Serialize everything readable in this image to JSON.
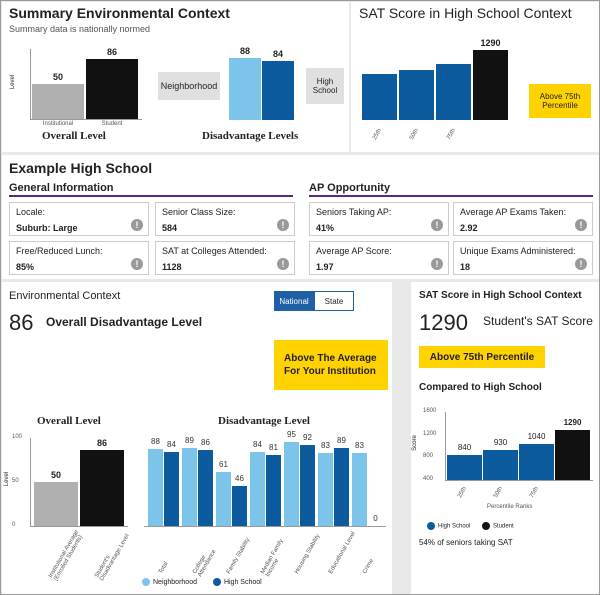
{
  "summary": {
    "title": "Summary Environmental Context",
    "subtitle": "Summary data is nationally normed",
    "overall": {
      "title": "Overall Level",
      "ylabel": "Level",
      "bars": [
        {
          "label": "Institutional",
          "value": 50,
          "color": "#b0b0b0"
        },
        {
          "label": "Student",
          "value": 86,
          "color": "#111111"
        }
      ]
    },
    "disadvantage": {
      "title": "Disadvantage Levels",
      "neighborhood_label": "Neighborhood",
      "high_school_label": "High School",
      "neighborhood_value": 88,
      "high_school_value": 84
    }
  },
  "sat_summary": {
    "title": "SAT Score in High School Context",
    "bars": [
      {
        "label": "25th",
        "value": 840
      },
      {
        "label": "50th",
        "value": 930
      },
      {
        "label": "75th",
        "value": 1040
      },
      {
        "label": "",
        "value": 1290
      }
    ],
    "student_value_label": "1290",
    "callout": "Above 75th Percentile"
  },
  "school": {
    "name": "Example High School",
    "general_title": "General Information",
    "ap_title": "AP Opportunity",
    "cards": [
      {
        "label": "Locale:",
        "value": "Suburb: Large"
      },
      {
        "label": "Senior Class Size:",
        "value": "584"
      },
      {
        "label": "Free/Reduced Lunch:",
        "value": "85%"
      },
      {
        "label": "SAT at Colleges Attended:",
        "value": "1128"
      }
    ],
    "ap_cards": [
      {
        "label": "Seniors Taking AP:",
        "value": "41%"
      },
      {
        "label": "Average AP Exams Taken:",
        "value": "2.92"
      },
      {
        "label": "Average AP Score:",
        "value": "1.97"
      },
      {
        "label": "Unique Exams Administered:",
        "value": "18"
      }
    ],
    "info_glyph": "!"
  },
  "env": {
    "title": "Environmental Context",
    "big_number": "86",
    "big_label": "Overall Disadvantage Level",
    "toggle": [
      "National",
      "State"
    ],
    "callout": "Above The Average For Your Institution",
    "overall_title": "Overall Level",
    "overall_ylabel": "Level",
    "overall_ticks": [
      "100",
      "50",
      "0"
    ],
    "overall_bars": [
      {
        "value": 50,
        "label": "Institutional Average (Enrolled Students)"
      },
      {
        "value": 86,
        "label": "Student's Disadvantage Level"
      }
    ],
    "dis_title": "Disadvantage Level",
    "dis_groups": [
      {
        "label": "Total",
        "neighborhood": 88,
        "high_school": 84
      },
      {
        "label": "College Attendance",
        "neighborhood": 89,
        "high_school": 86
      },
      {
        "label": "Family Stability",
        "neighborhood": 61,
        "high_school": 46
      },
      {
        "label": "Median Family Income",
        "neighborhood": 84,
        "high_school": 81
      },
      {
        "label": "Housing Stability",
        "neighborhood": 95,
        "high_school": 92
      },
      {
        "label": "Educational Level",
        "neighborhood": 83,
        "high_school": 89
      },
      {
        "label": "Crime",
        "neighborhood": 83,
        "high_school": 0
      }
    ],
    "legend": [
      "Neighborhood",
      "High School"
    ],
    "colors": {
      "neighborhood": "#7cc4ea",
      "high_school": "#0b5b9e"
    }
  },
  "sat_ctx": {
    "title": "SAT Score in High School Context",
    "big_number": "1290",
    "big_label": "Student's SAT Score",
    "callout": "Above 75th Percentile",
    "compared_title": "Compared to High School",
    "ylabel": "Score",
    "xlabel": "Percentile Ranks",
    "ticks": [
      "1600",
      "1200",
      "800",
      "400"
    ],
    "bars": [
      {
        "label": "25th",
        "value": 840
      },
      {
        "label": "50th",
        "value": 930
      },
      {
        "label": "75th",
        "value": 1040
      },
      {
        "label": "",
        "value": 1290
      }
    ],
    "legend": [
      "High School",
      "Student"
    ],
    "footnote": "54% of seniors taking SAT"
  },
  "chart_data": [
    {
      "type": "bar",
      "title": "Overall Level",
      "ylabel": "Level",
      "categories": [
        "Institutional",
        "Student"
      ],
      "values": [
        50,
        86
      ]
    },
    {
      "type": "bar",
      "title": "Disadvantage Levels",
      "categories": [
        "Neighborhood",
        "High School"
      ],
      "values": [
        88,
        84
      ]
    },
    {
      "type": "bar",
      "title": "SAT Score in High School Context",
      "categories": [
        "25th",
        "50th",
        "75th",
        ""
      ],
      "values": [
        840,
        930,
        1040,
        1290
      ]
    },
    {
      "type": "bar",
      "title": "Disadvantage Level",
      "categories": [
        "Total",
        "College Attendance",
        "Family Stability",
        "Median Family Income",
        "Housing Stability",
        "Educational Level",
        "Crime"
      ],
      "series": [
        {
          "name": "Neighborhood",
          "values": [
            88,
            89,
            61,
            84,
            95,
            83,
            83
          ]
        },
        {
          "name": "High School",
          "values": [
            84,
            86,
            46,
            81,
            92,
            89,
            0
          ]
        }
      ]
    }
  ]
}
